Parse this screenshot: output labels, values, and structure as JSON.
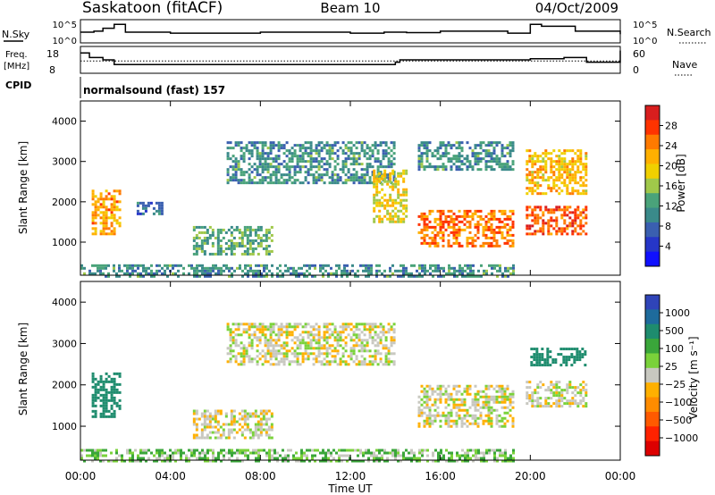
{
  "header": {
    "station": "Saskatoon (fitACF)",
    "beam": "Beam 10",
    "date": "04/Oct/2009"
  },
  "noise_panel": {
    "left_label": "N.Sky",
    "right_label": "N.Search",
    "left_ticks": [
      "10^5",
      "10^0"
    ],
    "right_ticks": [
      "10^5",
      "10^0"
    ]
  },
  "freq_panel": {
    "left_label_1": "Freq.",
    "left_label_2": "[MHz]",
    "right_label": "Nave",
    "left_ticks": [
      "18",
      "8"
    ],
    "right_ticks": [
      "60",
      "0"
    ]
  },
  "cpid": {
    "label": "CPID",
    "value": "normalsound (fast) 157"
  },
  "x_axis": {
    "ticks": [
      "00:00",
      "04:00",
      "08:00",
      "12:00",
      "16:00",
      "20:00",
      "00:00"
    ],
    "label": "Time UT"
  },
  "colorbars": {
    "power": {
      "label": "Power [dB]",
      "ticks": [
        "28",
        "24",
        "20",
        "16",
        "12",
        "8",
        "4"
      ],
      "colors": [
        "#d81e1e",
        "#ff3300",
        "#ff7a00",
        "#ffb000",
        "#f0d000",
        "#a0c84a",
        "#4aa37a",
        "#3a8a8a",
        "#3a5fb0",
        "#2636c8",
        "#1010ff"
      ]
    },
    "velocity": {
      "label": "Velocity [m s⁻¹]",
      "ticks": [
        "1000",
        "500",
        "100",
        "25",
        "−25",
        "−100",
        "−500",
        "−1000"
      ],
      "colors": [
        "#2f44b8",
        "#1e6b9c",
        "#1e8c6e",
        "#3aa63a",
        "#7ad23a",
        "#c8c8c0",
        "#ffb000",
        "#ff8c00",
        "#ff5a00",
        "#ff2200",
        "#dd0000"
      ]
    }
  },
  "chart_data": [
    {
      "type": "line",
      "title": "N.Sky / N.Search",
      "x_range_hours": [
        0,
        24
      ],
      "y_ticks": [
        "10^0",
        "10^5"
      ],
      "series": [
        {
          "name": "N.Sky",
          "x": [
            0,
            0.6,
            1.0,
            1.5,
            2.0,
            4,
            8,
            12,
            13.5,
            14.5,
            16,
            19,
            20,
            20.5,
            22,
            24
          ],
          "y": [
            0.5,
            0.55,
            0.7,
            0.9,
            0.5,
            0.45,
            0.5,
            0.45,
            0.5,
            0.48,
            0.55,
            0.45,
            0.9,
            0.8,
            0.55,
            0.4
          ]
        }
      ]
    },
    {
      "type": "line",
      "title": "Freq. / Nave",
      "x_range_hours": [
        0,
        24
      ],
      "freq_ylim": [
        8,
        18
      ],
      "nave_ylim": [
        0,
        60
      ],
      "series": [
        {
          "name": "Freq.",
          "x": [
            0,
            0.4,
            1.0,
            1.5,
            13.5,
            14,
            14.2,
            20.0,
            21.5,
            22.5,
            24
          ],
          "y": [
            16,
            14,
            13,
            11,
            11,
            12,
            13,
            13.5,
            14,
            12,
            17
          ]
        },
        {
          "name": "Nave",
          "x": [
            0,
            24
          ],
          "y": [
            27,
            27
          ]
        }
      ]
    },
    {
      "type": "scatter",
      "title": "Power",
      "xlabel": "",
      "ylabel": "Slant Range [km]",
      "x_range_hours": [
        0,
        24
      ],
      "ylim": [
        180,
        4500
      ],
      "y_ticks": [
        1000,
        2000,
        3000,
        4000
      ],
      "regions": [
        {
          "x": [
            0.5,
            1.8
          ],
          "y": [
            1200,
            2300
          ],
          "dB": 22
        },
        {
          "x": [
            2.5,
            3.6
          ],
          "y": [
            1700,
            2000
          ],
          "dB": 8
        },
        {
          "x": [
            5.0,
            8.5
          ],
          "y": [
            700,
            1400
          ],
          "dB": 12
        },
        {
          "x": [
            6.5,
            14.0
          ],
          "y": [
            2500,
            3500
          ],
          "dB": 10
        },
        {
          "x": [
            13.0,
            14.5
          ],
          "y": [
            1500,
            2800
          ],
          "dB": 18
        },
        {
          "x": [
            15.0,
            19.2
          ],
          "y": [
            900,
            1800
          ],
          "dB": 24
        },
        {
          "x": [
            15.0,
            19.2
          ],
          "y": [
            2800,
            3500
          ],
          "dB": 10
        },
        {
          "x": [
            19.8,
            22.5
          ],
          "y": [
            1200,
            1900
          ],
          "dB": 26
        },
        {
          "x": [
            19.8,
            22.5
          ],
          "y": [
            2200,
            3300
          ],
          "dB": 20
        },
        {
          "x": [
            0,
            19.2
          ],
          "y": [
            180,
            450
          ],
          "dB": 10
        }
      ]
    },
    {
      "type": "scatter",
      "title": "Velocity",
      "xlabel": "Time UT",
      "ylabel": "Slant Range [km]",
      "x_range_hours": [
        0,
        24
      ],
      "ylim": [
        180,
        4500
      ],
      "y_ticks": [
        1000,
        2000,
        3000,
        4000
      ],
      "regions": [
        {
          "x": [
            0.5,
            1.8
          ],
          "y": [
            1200,
            2300
          ],
          "v": 150
        },
        {
          "x": [
            5.0,
            8.5
          ],
          "y": [
            700,
            1400
          ],
          "v": 0
        },
        {
          "x": [
            6.5,
            14.0
          ],
          "y": [
            2500,
            3500
          ],
          "v": 0
        },
        {
          "x": [
            15.0,
            19.2
          ],
          "y": [
            1000,
            2000
          ],
          "v": 0
        },
        {
          "x": [
            19.8,
            22.5
          ],
          "y": [
            1500,
            2100
          ],
          "v": 0
        },
        {
          "x": [
            20.0,
            22.5
          ],
          "y": [
            2500,
            2900
          ],
          "v": 150
        },
        {
          "x": [
            0,
            19.2
          ],
          "y": [
            180,
            450
          ],
          "v": 40
        }
      ]
    }
  ]
}
